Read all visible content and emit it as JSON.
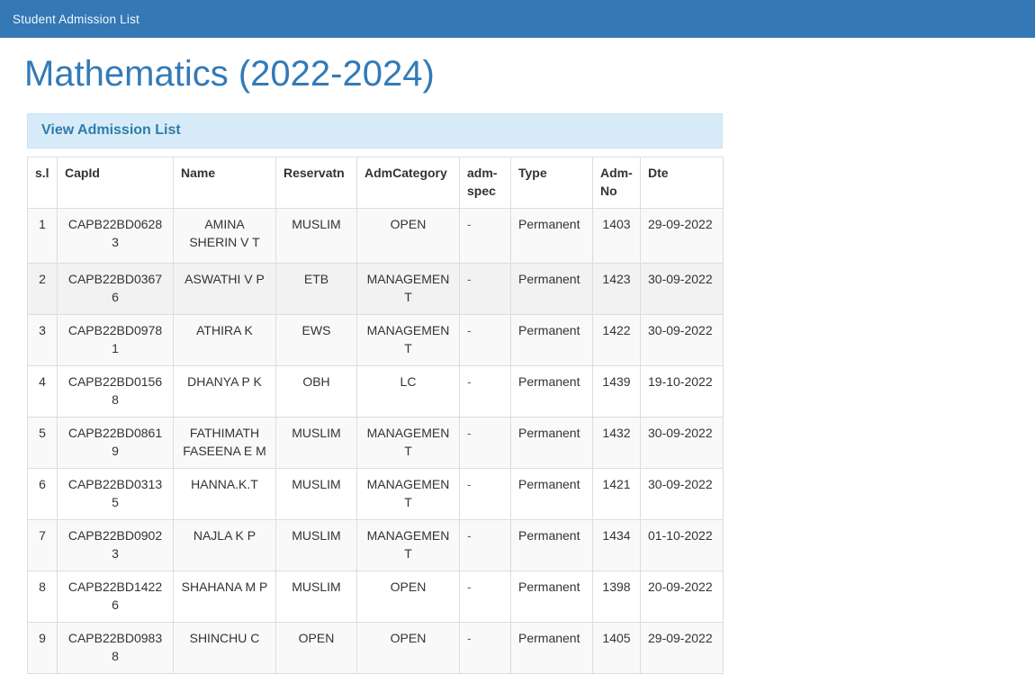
{
  "navbar": {
    "title": "Student Admission List"
  },
  "page": {
    "heading": "Mathematics (2022-2024)"
  },
  "panel": {
    "title": "View Admission List"
  },
  "table": {
    "columns": [
      {
        "key": "sl",
        "label": "s.l"
      },
      {
        "key": "capid",
        "label": "CapId"
      },
      {
        "key": "name",
        "label": "Name"
      },
      {
        "key": "reservatn",
        "label": "Reservatn"
      },
      {
        "key": "admcategory",
        "label": "AdmCategory"
      },
      {
        "key": "admspec",
        "label": "adm-spec"
      },
      {
        "key": "type",
        "label": "Type"
      },
      {
        "key": "admno",
        "label": "Adm-No"
      },
      {
        "key": "dte",
        "label": "Dte"
      }
    ],
    "rows": [
      {
        "sl": "1",
        "capid": "CAPB22BD06283",
        "name": "AMINA SHERIN V T",
        "reservatn": "MUSLIM",
        "admcategory": "OPEN",
        "admspec": "-",
        "type": "Permanent",
        "admno": "1403",
        "dte": "29-09-2022"
      },
      {
        "sl": "2",
        "capid": "CAPB22BD03676",
        "name": "ASWATHI V P",
        "reservatn": "ETB",
        "admcategory": "MANAGEMENT",
        "admspec": "-",
        "type": "Permanent",
        "admno": "1423",
        "dte": "30-09-2022"
      },
      {
        "sl": "3",
        "capid": "CAPB22BD09781",
        "name": "ATHIRA K",
        "reservatn": "EWS",
        "admcategory": "MANAGEMENT",
        "admspec": "-",
        "type": "Permanent",
        "admno": "1422",
        "dte": "30-09-2022"
      },
      {
        "sl": "4",
        "capid": "CAPB22BD01568",
        "name": "DHANYA P K",
        "reservatn": "OBH",
        "admcategory": "LC",
        "admspec": "-",
        "type": "Permanent",
        "admno": "1439",
        "dte": "19-10-2022"
      },
      {
        "sl": "5",
        "capid": "CAPB22BD08619",
        "name": "FATHIMATH FASEENA E M",
        "reservatn": "MUSLIM",
        "admcategory": "MANAGEMENT",
        "admspec": "-",
        "type": "Permanent",
        "admno": "1432",
        "dte": "30-09-2022"
      },
      {
        "sl": "6",
        "capid": "CAPB22BD03135",
        "name": "HANNA.K.T",
        "reservatn": "MUSLIM",
        "admcategory": "MANAGEMENT",
        "admspec": "-",
        "type": "Permanent",
        "admno": "1421",
        "dte": "30-09-2022"
      },
      {
        "sl": "7",
        "capid": "CAPB22BD09023",
        "name": "NAJLA K P",
        "reservatn": "MUSLIM",
        "admcategory": "MANAGEMENT",
        "admspec": "-",
        "type": "Permanent",
        "admno": "1434",
        "dte": "01-10-2022"
      },
      {
        "sl": "8",
        "capid": "CAPB22BD14226",
        "name": "SHAHANA M P",
        "reservatn": "MUSLIM",
        "admcategory": "OPEN",
        "admspec": "-",
        "type": "Permanent",
        "admno": "1398",
        "dte": "20-09-2022"
      },
      {
        "sl": "9",
        "capid": "CAPB22BD09838",
        "name": "SHINCHU C",
        "reservatn": "OPEN",
        "admcategory": "OPEN",
        "admspec": "-",
        "type": "Permanent",
        "admno": "1405",
        "dte": "29-09-2022"
      }
    ]
  },
  "colors": {
    "navbar_bg": "#3478b6",
    "navbar_text": "#f2f7fb",
    "heading_text": "#337ab7",
    "panel_heading_bg": "#d7ecf8",
    "panel_heading_border": "#c9e4f3",
    "panel_heading_text": "#2e7cab",
    "stripe_bg": "#f9f9f9",
    "dash_green": "#2e8b2e"
  }
}
